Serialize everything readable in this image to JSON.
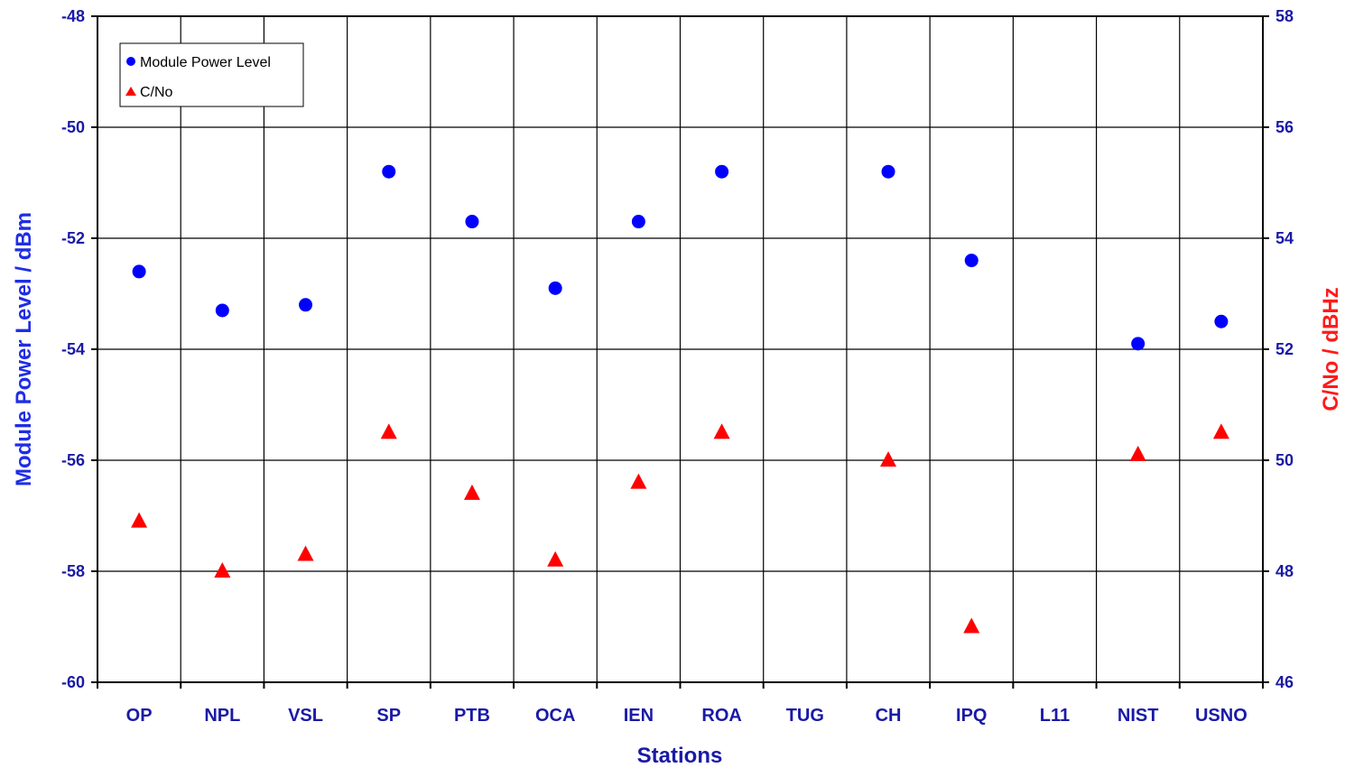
{
  "chart_data": {
    "type": "scatter",
    "xlabel": "Stations",
    "ylabel_left": "Module Power Level   / dBm",
    "ylabel_right": "C/No   / dBHz",
    "categories": [
      "OP",
      "NPL",
      "VSL",
      "SP",
      "PTB",
      "OCA",
      "IEN",
      "ROA",
      "TUG",
      "CH",
      "IPQ",
      "L11",
      "NIST",
      "USNO"
    ],
    "ylim_left": [
      -60,
      -48
    ],
    "yticks_left": [
      -48,
      -50,
      -52,
      -54,
      -56,
      -58,
      -60
    ],
    "ylim_right": [
      46,
      58
    ],
    "yticks_right": [
      58,
      56,
      54,
      52,
      50,
      48,
      46
    ],
    "grid": true,
    "legend_position": "top-left",
    "series": [
      {
        "name": "Module Power Level",
        "axis": "left",
        "marker": "circle",
        "color": "#0000ff",
        "values": [
          -52.6,
          -53.3,
          -53.2,
          -50.8,
          -51.7,
          -52.9,
          -51.7,
          -50.8,
          null,
          -50.8,
          -52.4,
          null,
          -53.9,
          -53.5
        ]
      },
      {
        "name": "C/No",
        "axis": "right",
        "marker": "triangle",
        "color": "#ff0000",
        "values": [
          48.9,
          48.0,
          48.3,
          50.5,
          49.4,
          48.2,
          49.6,
          50.5,
          null,
          50.0,
          47.0,
          null,
          50.1,
          50.5
        ]
      }
    ]
  }
}
